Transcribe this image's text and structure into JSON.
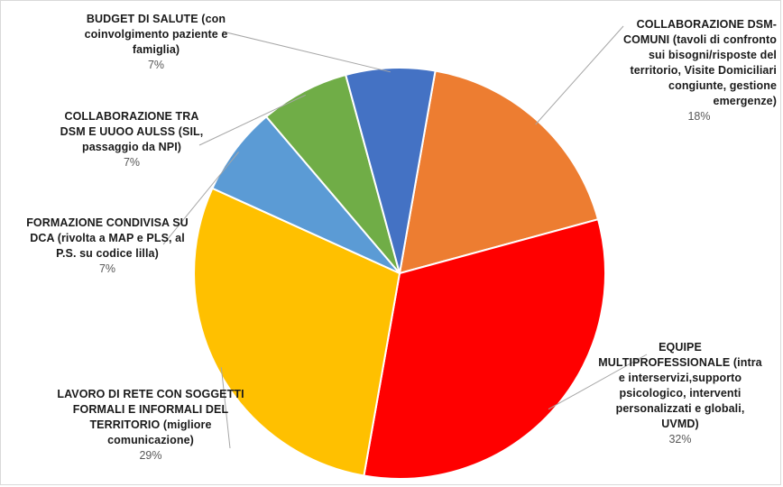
{
  "chart_data": {
    "type": "pie",
    "slices": [
      {
        "label": "COLLABORAZIONE DSM-COMUNI (tavoli di confronto sui bisogni/risposte del territorio, Visite Domiciliari congiunte, gestione emergenze)",
        "value_label": "18%",
        "value": 18,
        "color": "#ED7D31"
      },
      {
        "label": "EQUIPE MULTIPROFESSIONALE (intra e interservizi,supporto psicologico, interventi personalizzati e globali, UVMD)",
        "value_label": "32%",
        "value": 32,
        "color": "#FF0000"
      },
      {
        "label": "LAVORO DI RETE CON SOGGETTI FORMALI E INFORMALI DEL TERRITORIO (migliore comunicazione)",
        "value_label": "29%",
        "value": 29,
        "color": "#FFC000"
      },
      {
        "label": "FORMAZIONE CONDIVISA SU DCA (rivolta a MAP e PLS, al P.S. su codice lilla)",
        "value_label": "7%",
        "value": 7,
        "color": "#5B9BD5"
      },
      {
        "label": "COLLABORAZIONE TRA DSM E UUOO AULSS (SIL, passaggio da NPI)",
        "value_label": "7%",
        "value": 7,
        "color": "#70AD47"
      },
      {
        "label": "BUDGET DI SALUTE (con coinvolgimento paziente e famiglia)",
        "value_label": "7%",
        "value": 7,
        "color": "#4472C4"
      }
    ]
  }
}
